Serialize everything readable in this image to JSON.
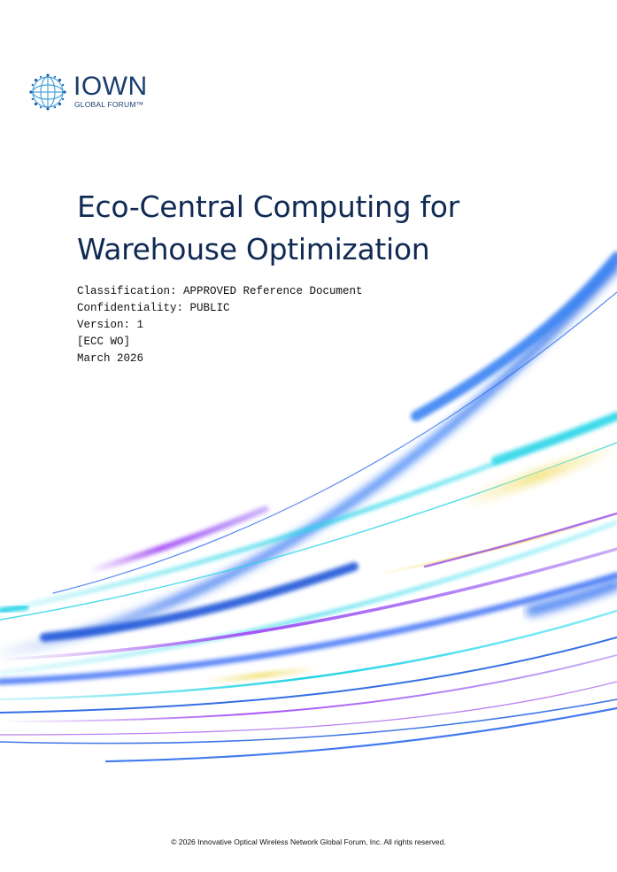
{
  "logo": {
    "wordmark": "IOWN",
    "subtitle": "GLOBAL FORUM™",
    "icon": "globe-mesh-icon",
    "color": "#1a3d6e",
    "accent": "#4aa3d8"
  },
  "document": {
    "title_line1": "Eco-Central Computing for",
    "title_line2": "Warehouse Optimization",
    "classification": "Classification: APPROVED Reference Document",
    "confidentiality": "Confidentiality: PUBLIC",
    "version": "Version: 1",
    "code": "[ECC WO]",
    "date": "March 2026"
  },
  "footer": {
    "copyright": "© 2026 Innovative Optical Wireless Network Global Forum, Inc. All rights reserved."
  },
  "colors": {
    "title": "#102a54",
    "wave_blue": "#1f5fe0",
    "wave_cyan": "#22d3e6",
    "wave_purple": "#9b4fe8",
    "wave_yellow": "#f3e27a"
  }
}
